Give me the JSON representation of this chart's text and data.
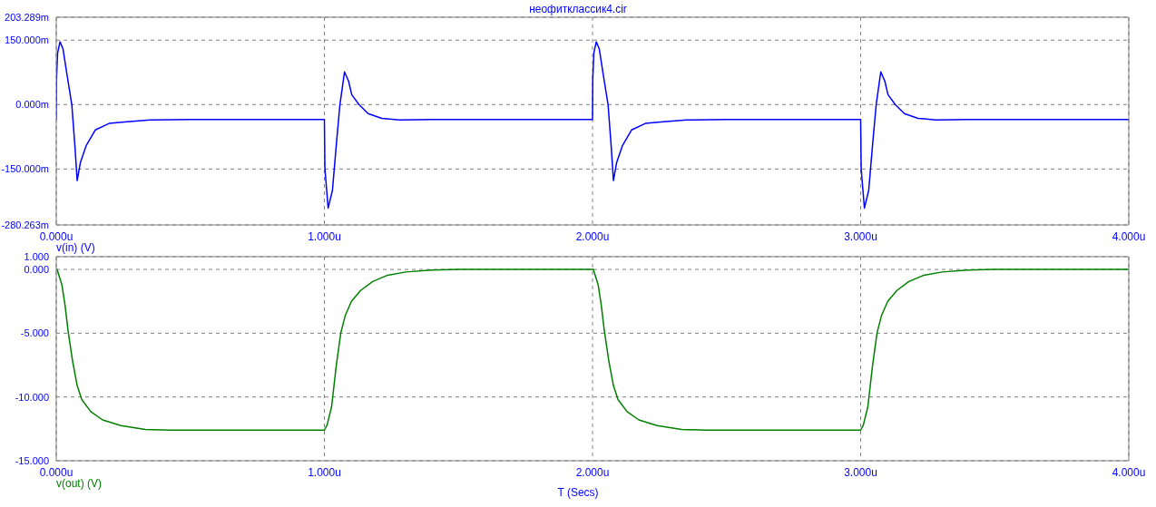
{
  "chart_data": [
    {
      "type": "line",
      "title": "неофитклассик4.cir",
      "legend": "bottom left",
      "grid": true,
      "x": [
        0,
        0.001,
        0.005,
        0.014,
        0.025,
        0.04,
        0.058,
        0.07,
        0.078,
        0.09,
        0.112,
        0.146,
        0.197,
        0.264,
        0.35,
        0.5,
        1,
        1.002,
        1.014,
        1.03,
        1.045,
        1.058,
        1.075,
        1.09,
        1.102,
        1.129,
        1.163,
        1.214,
        1.28,
        1.4,
        2,
        2.001,
        2.005,
        2.014,
        2.025,
        2.04,
        2.058,
        2.07,
        2.078,
        2.09,
        2.112,
        2.146,
        2.197,
        2.264,
        2.35,
        2.5,
        3,
        3.002,
        3.014,
        3.03,
        3.045,
        3.058,
        3.075,
        3.09,
        3.102,
        3.129,
        3.163,
        3.214,
        3.28,
        3.4,
        4
      ],
      "series": [
        {
          "name": "v(in) (V)",
          "color": "#0000ff",
          "values": [
            -35,
            60,
            120,
            146,
            130,
            70,
            0,
            -100,
            -177,
            -135,
            -95,
            -59,
            -44,
            -40,
            -36,
            -35,
            -35,
            -150,
            -241,
            -200,
            -90,
            0,
            76,
            55,
            23,
            0,
            -21,
            -32,
            -36,
            -35,
            -35,
            60,
            120,
            146,
            130,
            70,
            0,
            -100,
            -177,
            -135,
            -95,
            -59,
            -44,
            -40,
            -36,
            -35,
            -35,
            -150,
            -241,
            -200,
            -90,
            0,
            76,
            55,
            23,
            0,
            -21,
            -32,
            -36,
            -35,
            -35
          ]
        }
      ],
      "xlim": [
        0,
        4
      ],
      "xticks": [
        {
          "value": 0,
          "label": "0.000u"
        },
        {
          "value": 1,
          "label": "1.000u"
        },
        {
          "value": 2,
          "label": "2.000u"
        },
        {
          "value": 3,
          "label": "3.000u"
        },
        {
          "value": 4,
          "label": "4.000u"
        }
      ],
      "ylim": [
        -280.263,
        203.289
      ],
      "yticks": [
        {
          "value": -280.263,
          "label": "-280.263m"
        },
        {
          "value": -150,
          "label": "-150.000m"
        },
        {
          "value": 0,
          "label": "0.000m"
        },
        {
          "value": 150,
          "label": "150.000m"
        },
        {
          "value": 203.289,
          "label": "203.289m"
        }
      ]
    },
    {
      "type": "line",
      "xlabel": "T (Secs)",
      "legend": "bottom left",
      "grid": true,
      "x": [
        0,
        0.003,
        0.021,
        0.033,
        0.044,
        0.061,
        0.078,
        0.095,
        0.129,
        0.173,
        0.241,
        0.332,
        0.424,
        1,
        1.01,
        1.027,
        1.044,
        1.061,
        1.078,
        1.101,
        1.135,
        1.18,
        1.236,
        1.304,
        1.4,
        1.5,
        2,
        2.003,
        2.021,
        2.033,
        2.044,
        2.061,
        2.078,
        2.095,
        2.129,
        2.173,
        2.241,
        2.332,
        2.424,
        3,
        3.01,
        3.027,
        3.044,
        3.061,
        3.078,
        3.101,
        3.135,
        3.18,
        3.236,
        3.304,
        3.4,
        3.5,
        4
      ],
      "series": [
        {
          "name": "v(out) (V)",
          "color": "#008000",
          "values": [
            0,
            0,
            -1.2,
            -2.85,
            -4.8,
            -7.2,
            -9.1,
            -10.2,
            -11.15,
            -11.8,
            -12.25,
            -12.55,
            -12.6,
            -12.6,
            -12.2,
            -10.75,
            -7.6,
            -5.0,
            -3.6,
            -2.5,
            -1.65,
            -0.95,
            -0.45,
            -0.2,
            -0.05,
            0,
            0,
            0,
            -1.2,
            -2.85,
            -4.8,
            -7.2,
            -9.1,
            -10.2,
            -11.15,
            -11.8,
            -12.25,
            -12.55,
            -12.6,
            -12.6,
            -12.2,
            -10.75,
            -7.6,
            -5.0,
            -3.6,
            -2.5,
            -1.65,
            -0.95,
            -0.45,
            -0.2,
            -0.05,
            0,
            0
          ]
        }
      ],
      "xlim": [
        0,
        4
      ],
      "xticks": [
        {
          "value": 0,
          "label": "0.000u"
        },
        {
          "value": 1,
          "label": "1.000u"
        },
        {
          "value": 2,
          "label": "2.000u"
        },
        {
          "value": 3,
          "label": "3.000u"
        },
        {
          "value": 4,
          "label": "4.000u"
        }
      ],
      "ylim": [
        -15,
        1
      ],
      "yticks": [
        {
          "value": -15,
          "label": "-15.000"
        },
        {
          "value": -10,
          "label": "-10.000"
        },
        {
          "value": -5,
          "label": "-5.000"
        },
        {
          "value": 0,
          "label": "0.000"
        },
        {
          "value": 1,
          "label": "1.000"
        }
      ]
    }
  ]
}
